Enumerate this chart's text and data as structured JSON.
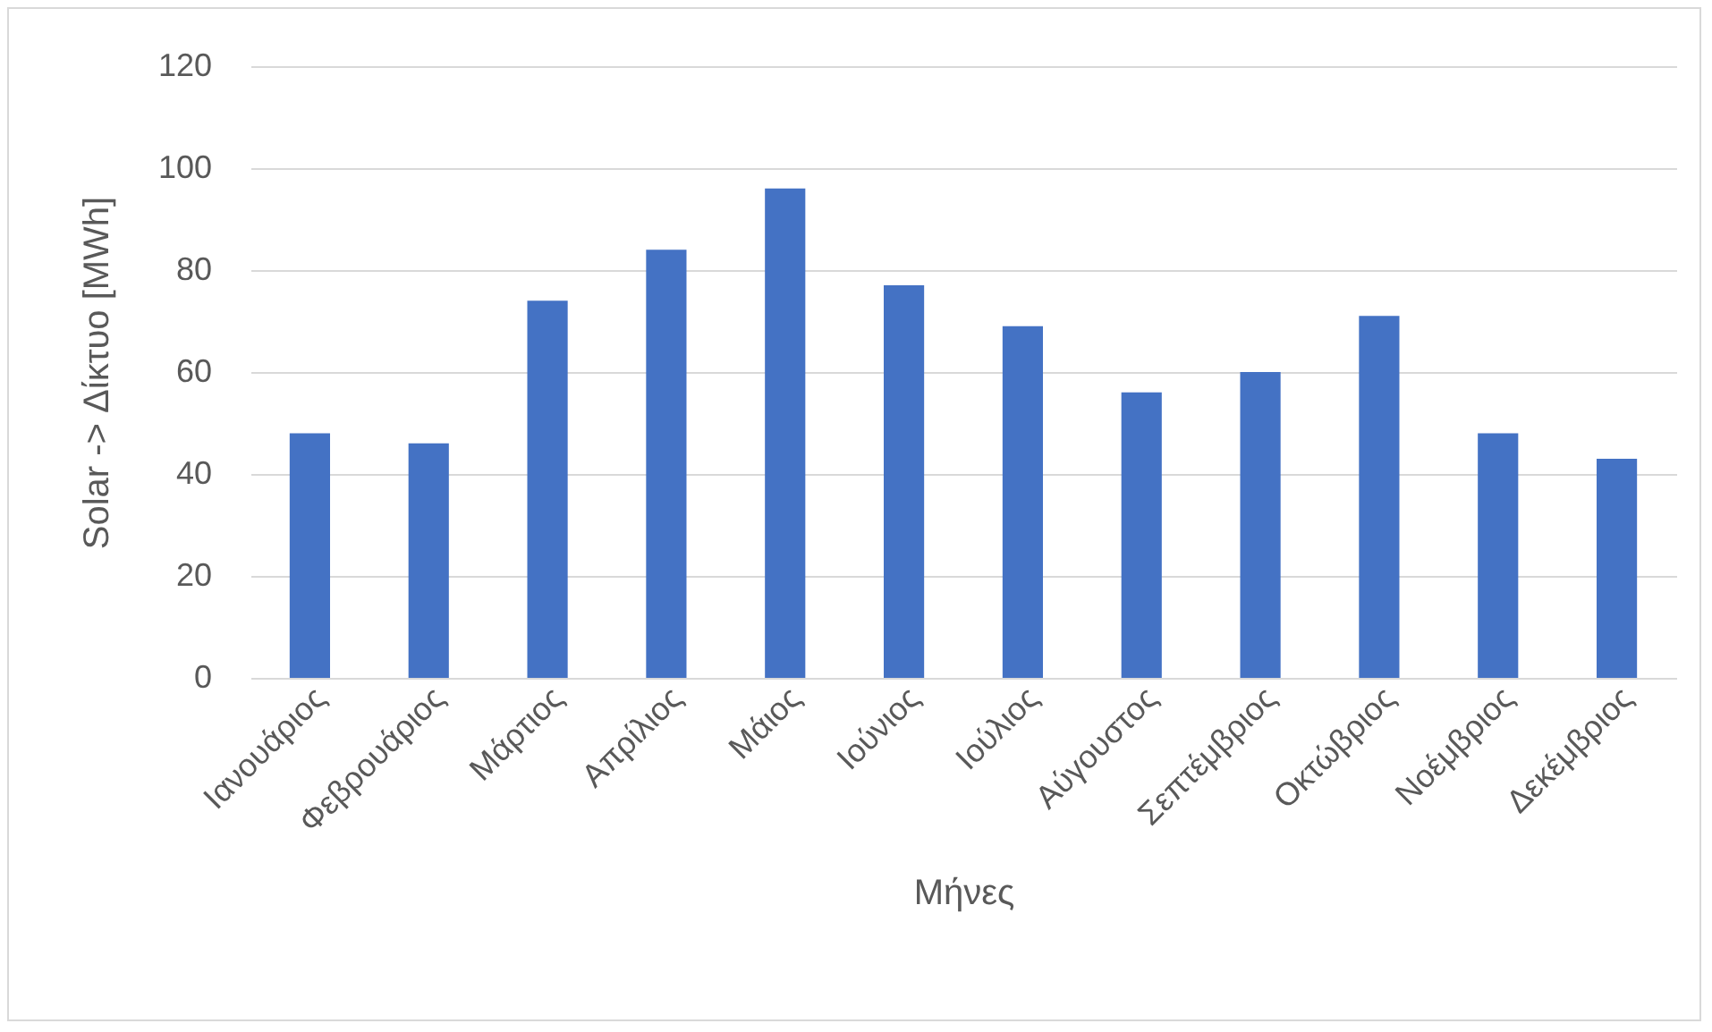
{
  "chart_data": {
    "type": "bar",
    "xlabel": "Μήνες",
    "ylabel": "Solar -> Δίκτυο [MWh]",
    "categories": [
      "Ιανουάριος",
      "Φεβρουάριος",
      "Μάρτιος",
      "Απρίλιος",
      "Μάιος",
      "Ιούνιος",
      "Ιούλιος",
      "Αύγουστος",
      "Σεπτέμβριος",
      "Οκτώβριος",
      "Νοέμβριος",
      "Δεκέμβριος"
    ],
    "values": [
      48,
      46,
      74,
      84,
      96,
      77,
      69,
      56,
      60,
      71,
      48,
      43
    ],
    "color": "#4472c4",
    "ylim": [
      0,
      120
    ],
    "yticks": [
      0,
      20,
      40,
      60,
      80,
      100,
      120
    ],
    "grid": "y"
  }
}
